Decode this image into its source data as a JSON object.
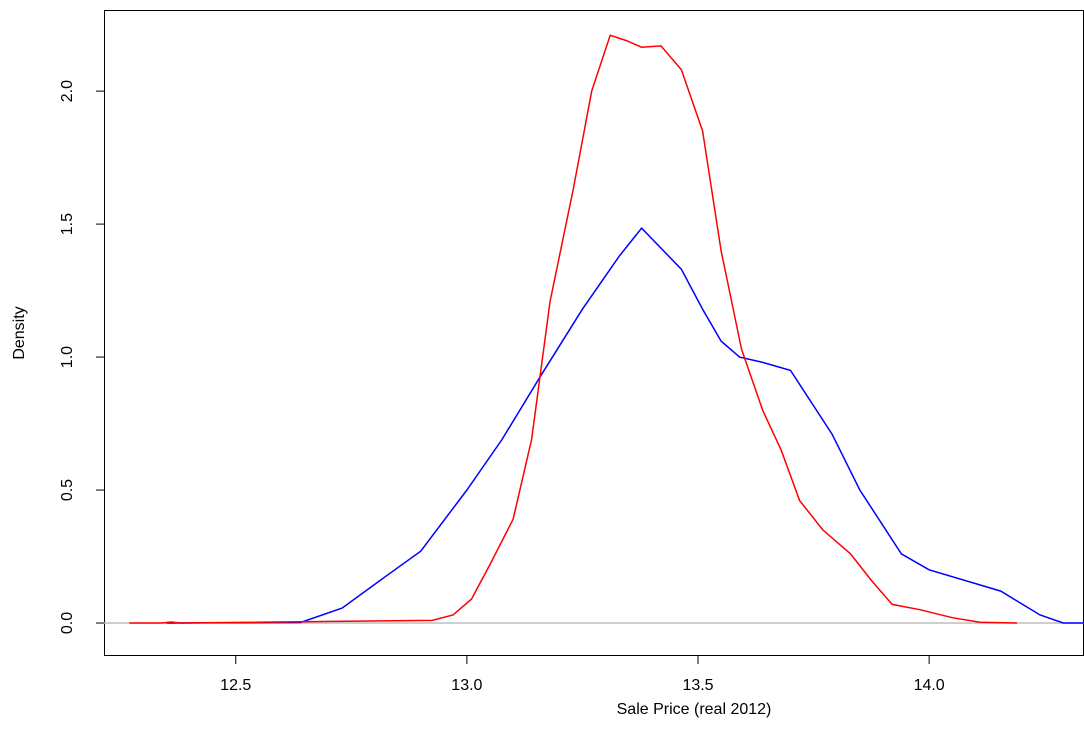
{
  "chart_data": {
    "type": "line",
    "xlabel": "Sale Price (real 2012)",
    "ylabel": "Density",
    "xlim": [
      12.215,
      14.335
    ],
    "ylim": [
      -0.124,
      2.305
    ],
    "xticks": [
      12.5,
      {
        "value": 13,
        "label": "13.0"
      },
      13.5,
      {
        "value": 14,
        "label": "14.0"
      }
    ],
    "yticks": [
      {
        "value": 0,
        "label": "0.0"
      },
      0.5,
      {
        "value": 1,
        "label": "1.0"
      },
      1.5,
      {
        "value": 2,
        "label": "2.0"
      }
    ],
    "hline": {
      "value": 0,
      "color": "#bebebe"
    },
    "series": [
      {
        "color": "#0000ff",
        "x": [
          12.35,
          12.64,
          12.73,
          12.82,
          12.9,
          13.0,
          13.076,
          13.16,
          13.25,
          13.33,
          13.378,
          13.464,
          13.51,
          13.55,
          13.59,
          13.64,
          13.7,
          13.79,
          13.85,
          13.94,
          14.0,
          14.155,
          14.24,
          14.29,
          14.335
        ],
        "values": [
          0,
          0.002,
          0.056,
          0.17,
          0.27,
          0.5,
          0.69,
          0.93,
          1.18,
          1.38,
          1.485,
          1.33,
          1.18,
          1.06,
          1.0,
          0.98,
          0.95,
          0.71,
          0.5,
          0.26,
          0.2,
          0.12,
          0.03,
          0,
          0
        ]
      },
      {
        "color": "#ff0000",
        "x": [
          12.27,
          12.34,
          12.36,
          12.38,
          12.925,
          12.97,
          13.01,
          13.05,
          13.1,
          13.14,
          13.18,
          13.23,
          13.27,
          13.31,
          13.345,
          13.378,
          13.42,
          13.464,
          13.51,
          13.55,
          13.594,
          13.64,
          13.68,
          13.72,
          13.77,
          13.83,
          13.875,
          13.92,
          13.98,
          14.05,
          14.11,
          14.19
        ],
        "values": [
          0,
          0,
          0.004,
          0,
          0.01,
          0.03,
          0.09,
          0.22,
          0.39,
          0.69,
          1.21,
          1.63,
          2.0,
          2.21,
          2.19,
          2.165,
          2.17,
          2.08,
          1.85,
          1.4,
          1.03,
          0.8,
          0.65,
          0.46,
          0.35,
          0.26,
          0.16,
          0.07,
          0.05,
          0.02,
          0.003,
          0
        ]
      }
    ]
  }
}
